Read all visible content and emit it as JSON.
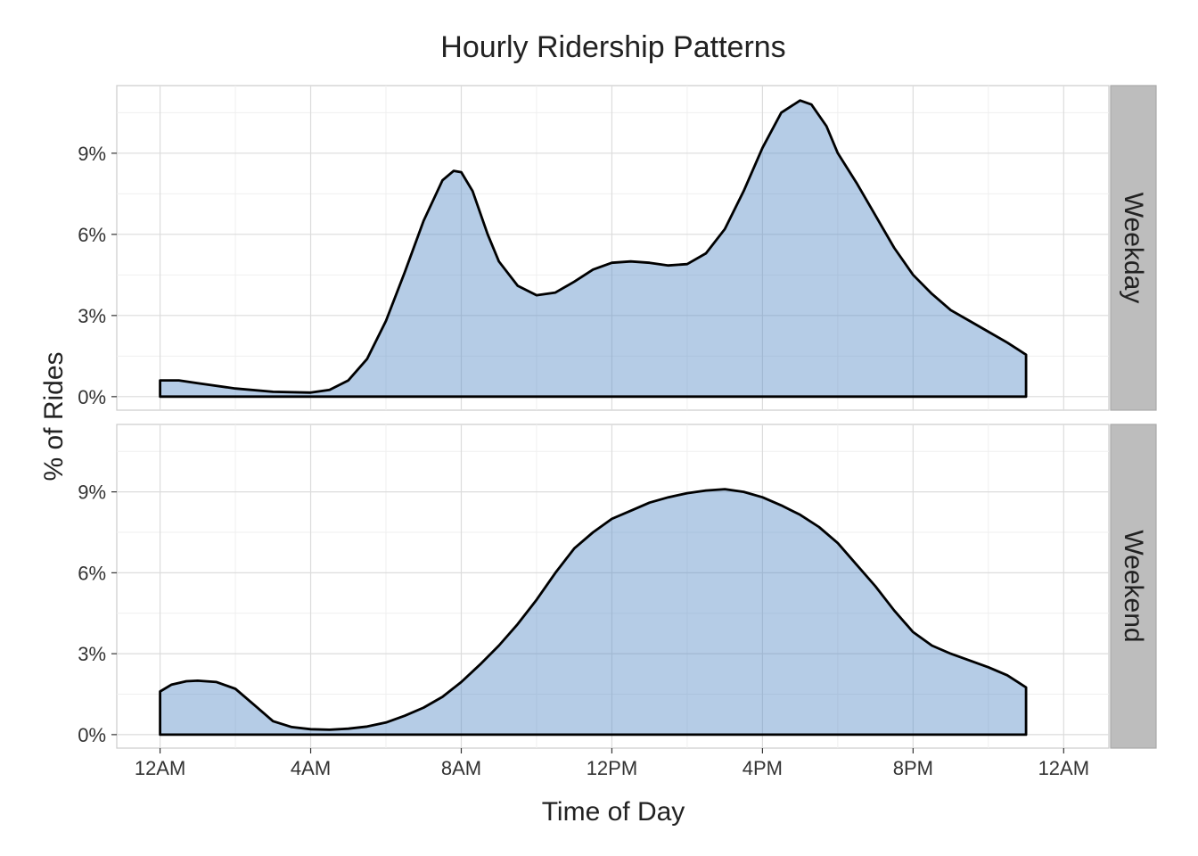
{
  "chart_data": {
    "type": "area",
    "title": "Hourly Ridership Patterns",
    "xlabel": "Time of Day",
    "ylabel": "% of Rides",
    "x_unit": "hour of day",
    "xlim": [
      -1.15,
      25.2
    ],
    "ylim": [
      -0.5,
      11.5
    ],
    "x_ticks": [
      {
        "value": 0,
        "label": "12AM"
      },
      {
        "value": 4,
        "label": "4AM"
      },
      {
        "value": 8,
        "label": "8AM"
      },
      {
        "value": 12,
        "label": "12PM"
      },
      {
        "value": 16,
        "label": "4PM"
      },
      {
        "value": 20,
        "label": "8PM"
      },
      {
        "value": 24,
        "label": "12AM"
      }
    ],
    "y_ticks": [
      {
        "value": 0,
        "label": "0%"
      },
      {
        "value": 3,
        "label": "3%"
      },
      {
        "value": 6,
        "label": "6%"
      },
      {
        "value": 9,
        "label": "9%"
      }
    ],
    "fill_color": "#5a8fc8",
    "line_color": "#000000",
    "panels": [
      {
        "name": "Weekday",
        "x": [
          0,
          0.5,
          1,
          2,
          3,
          4,
          4.5,
          5,
          5.5,
          6,
          6.5,
          7,
          7.5,
          7.8,
          8,
          8.3,
          8.7,
          9,
          9.5,
          10,
          10.5,
          11,
          11.5,
          12,
          12.5,
          13,
          13.5,
          14,
          14.5,
          15,
          15.5,
          16,
          16.5,
          17,
          17.3,
          17.7,
          18,
          18.5,
          19,
          19.5,
          20,
          20.5,
          21,
          21.5,
          22,
          22.5,
          23
        ],
        "values": [
          0.6,
          0.6,
          0.5,
          0.3,
          0.18,
          0.15,
          0.25,
          0.6,
          1.4,
          2.8,
          4.6,
          6.5,
          8.0,
          8.35,
          8.3,
          7.6,
          6.0,
          5.0,
          4.1,
          3.75,
          3.85,
          4.25,
          4.7,
          4.95,
          5.0,
          4.95,
          4.85,
          4.9,
          5.3,
          6.2,
          7.6,
          9.2,
          10.5,
          10.95,
          10.8,
          10.0,
          9.0,
          7.9,
          6.7,
          5.5,
          4.5,
          3.8,
          3.2,
          2.8,
          2.4,
          2.0,
          1.55
        ]
      },
      {
        "name": "Weekend",
        "x": [
          0,
          0.3,
          0.7,
          1,
          1.5,
          2,
          2.5,
          3,
          3.5,
          4,
          4.5,
          5,
          5.5,
          6,
          6.5,
          7,
          7.5,
          8,
          8.5,
          9,
          9.5,
          10,
          10.5,
          11,
          11.5,
          12,
          12.5,
          13,
          13.5,
          14,
          14.5,
          15,
          15.5,
          16,
          16.5,
          17,
          17.5,
          18,
          18.5,
          19,
          19.5,
          20,
          20.5,
          21,
          21.5,
          22,
          22.5,
          23
        ],
        "values": [
          1.6,
          1.85,
          1.98,
          2.0,
          1.95,
          1.7,
          1.1,
          0.5,
          0.28,
          0.2,
          0.18,
          0.22,
          0.3,
          0.45,
          0.7,
          1.0,
          1.4,
          1.95,
          2.6,
          3.3,
          4.1,
          5.0,
          6.0,
          6.9,
          7.5,
          8.0,
          8.3,
          8.6,
          8.8,
          8.95,
          9.05,
          9.1,
          9.0,
          8.8,
          8.5,
          8.15,
          7.7,
          7.1,
          6.3,
          5.5,
          4.6,
          3.8,
          3.3,
          3.0,
          2.75,
          2.5,
          2.2,
          1.75
        ]
      }
    ]
  }
}
